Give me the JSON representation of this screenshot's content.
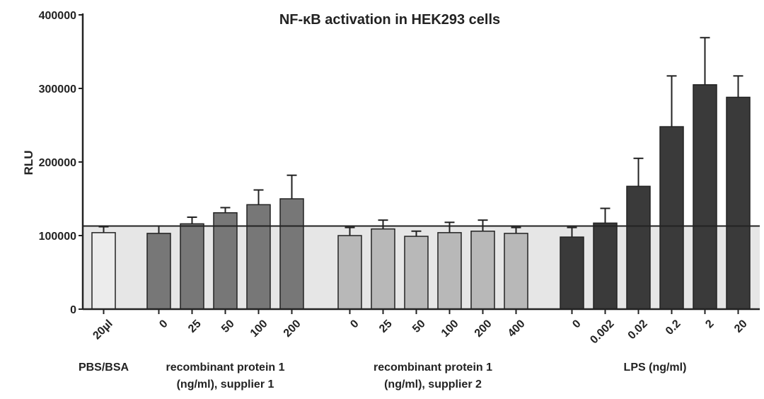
{
  "chart_data": {
    "type": "bar",
    "title": "NF-κB activation in HEK293 cells",
    "ylabel": "RLU",
    "xlabel": "",
    "ylim": [
      0,
      400000
    ],
    "yticks": [
      "0",
      "100000",
      "200000",
      "300000",
      "400000"
    ],
    "yticks_values": [
      0,
      100000,
      200000,
      300000,
      400000
    ],
    "reference_line": 113000,
    "groups": [
      {
        "name": "PBS/BSA",
        "label_lines": [
          "PBS/BSA"
        ],
        "color": "#ececec",
        "categories": [
          "20µl"
        ],
        "values": [
          104000
        ],
        "errors": [
          8000
        ]
      },
      {
        "name": "recombinant protein 1 (ng/ml), supplier 1",
        "label_lines": [
          "recombinant protein 1",
          "(ng/ml), supplier 1"
        ],
        "color": "#777777",
        "categories": [
          "0",
          "25",
          "50",
          "100",
          "200"
        ],
        "values": [
          103000,
          116000,
          131000,
          142000,
          150000
        ],
        "errors": [
          10000,
          9000,
          7000,
          20000,
          32000
        ]
      },
      {
        "name": "recombinant protein 1 (ng/ml), supplier 2",
        "label_lines": [
          "recombinant protein 1",
          "(ng/ml), supplier 2"
        ],
        "color": "#b8b8b8",
        "categories": [
          "0",
          "25",
          "50",
          "100",
          "200",
          "400"
        ],
        "values": [
          100000,
          109000,
          99000,
          104000,
          106000,
          103000
        ],
        "errors": [
          11000,
          12000,
          7000,
          14000,
          15000,
          8000
        ]
      },
      {
        "name": "LPS (ng/ml)",
        "label_lines": [
          "LPS (ng/ml)"
        ],
        "color": "#3a3a3a",
        "categories": [
          "0",
          "0.002",
          "0.02",
          "0.2",
          "2",
          "20"
        ],
        "values": [
          98000,
          117000,
          167000,
          248000,
          305000,
          288000
        ],
        "errors": [
          13000,
          20000,
          38000,
          69000,
          64000,
          29000
        ]
      }
    ]
  }
}
